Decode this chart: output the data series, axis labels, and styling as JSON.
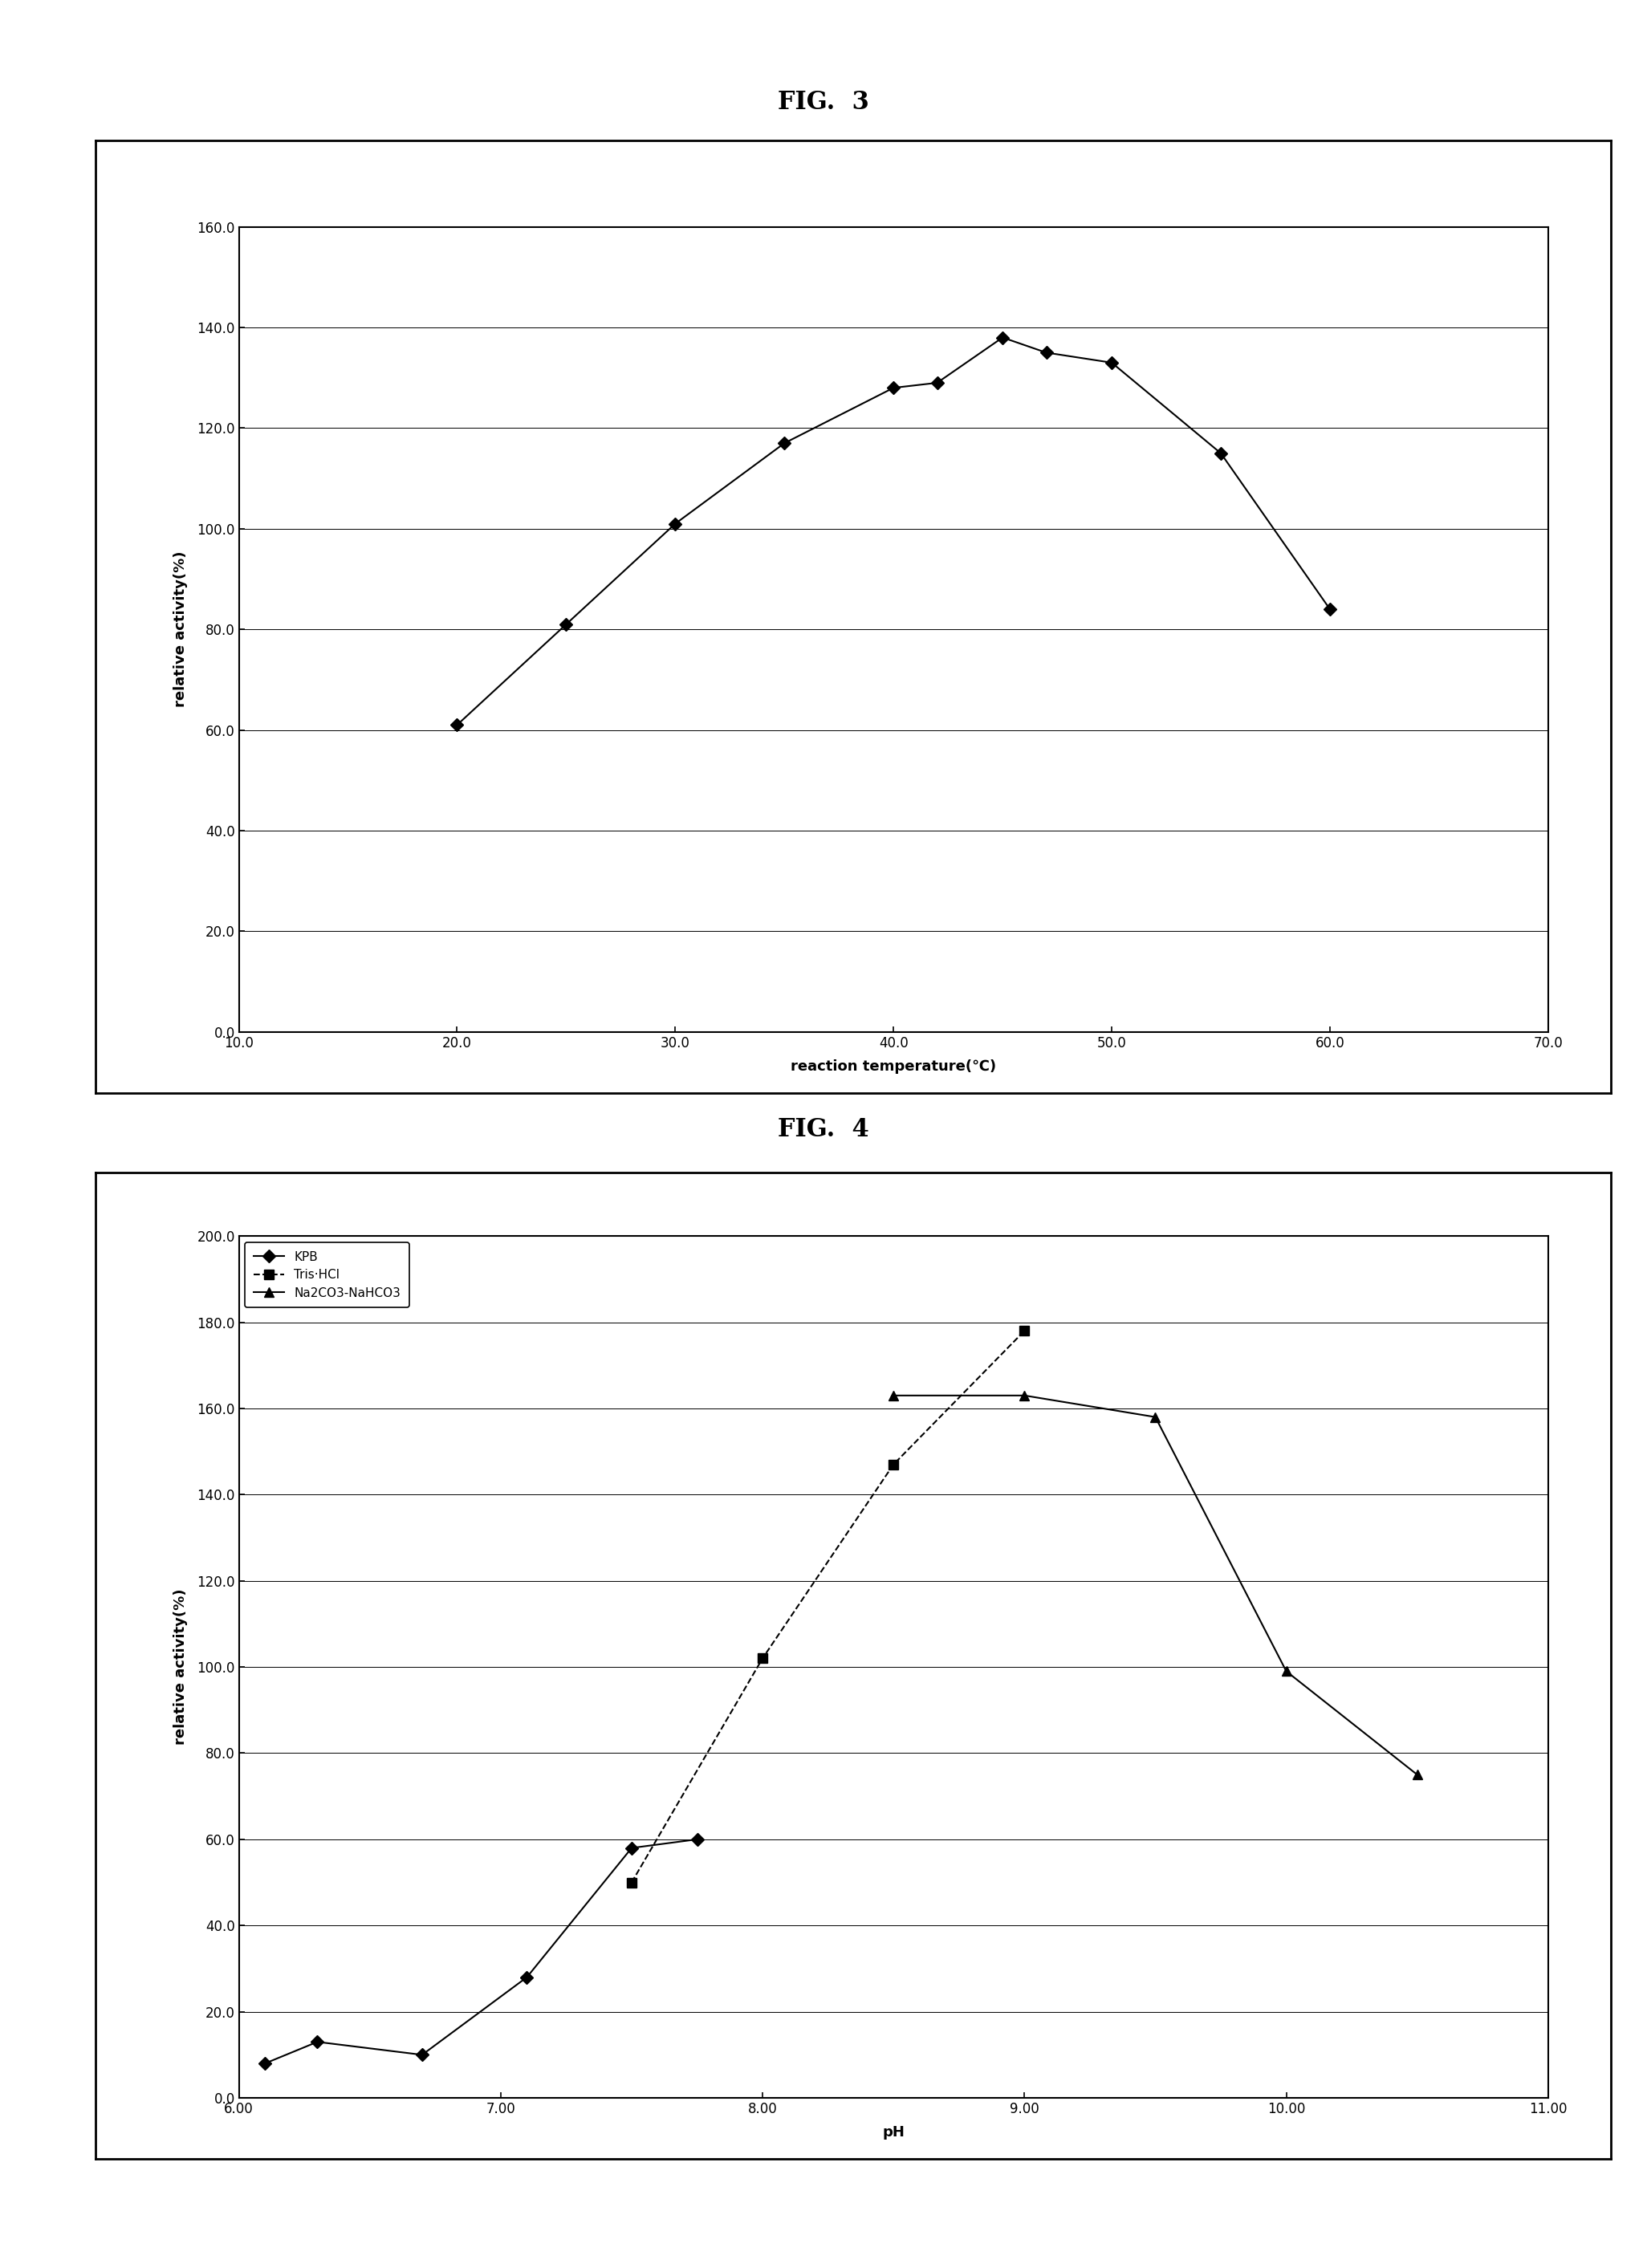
{
  "fig3": {
    "title": "FIG.  3",
    "xlabel": "reaction temperature(℃)",
    "ylabel": "relative activity(%)",
    "xlim": [
      10.0,
      70.0
    ],
    "ylim": [
      0.0,
      160.0
    ],
    "xticks": [
      10.0,
      20.0,
      30.0,
      40.0,
      50.0,
      60.0,
      70.0
    ],
    "yticks": [
      0.0,
      20.0,
      40.0,
      60.0,
      80.0,
      100.0,
      120.0,
      140.0,
      160.0
    ],
    "x": [
      20.0,
      25.0,
      30.0,
      35.0,
      40.0,
      42.0,
      45.0,
      47.0,
      50.0,
      55.0,
      60.0
    ],
    "y": [
      61.0,
      81.0,
      101.0,
      117.0,
      128.0,
      129.0,
      138.0,
      135.0,
      133.0,
      115.0,
      84.0
    ],
    "marker": "D",
    "line_color": "#000000",
    "marker_color": "#000000"
  },
  "fig4": {
    "title": "FIG.  4",
    "xlabel": "pH",
    "ylabel": "relative activity(%)",
    "xlim": [
      6.0,
      11.0
    ],
    "ylim": [
      0.0,
      200.0
    ],
    "xticks": [
      6.0,
      7.0,
      8.0,
      9.0,
      10.0,
      11.0
    ],
    "xtick_labels": [
      "6.00",
      "7.00",
      "8.00",
      "9.00",
      "10.00",
      "11.00"
    ],
    "yticks": [
      0.0,
      20.0,
      40.0,
      60.0,
      80.0,
      100.0,
      120.0,
      140.0,
      160.0,
      180.0,
      200.0
    ],
    "series": [
      {
        "label": "KPB",
        "x": [
          6.1,
          6.3,
          6.7,
          7.1,
          7.5,
          7.75
        ],
        "y": [
          8.0,
          13.0,
          10.0,
          28.0,
          58.0,
          60.0
        ],
        "marker": "D",
        "linestyle": "-"
      },
      {
        "label": "Tris·HCl",
        "x": [
          7.5,
          8.0,
          8.5,
          9.0
        ],
        "y": [
          50.0,
          102.0,
          147.0,
          178.0
        ],
        "marker": "s",
        "linestyle": "--"
      },
      {
        "label": "Na2CO3-NaHCO3",
        "x": [
          8.5,
          9.0,
          9.5,
          10.0,
          10.5
        ],
        "y": [
          163.0,
          163.0,
          158.0,
          99.0,
          75.0
        ],
        "marker": "^",
        "linestyle": "-"
      }
    ],
    "line_color": "#000000",
    "marker_color": "#000000"
  }
}
